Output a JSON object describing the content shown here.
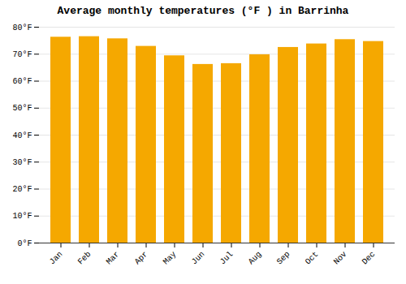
{
  "chart_data": {
    "type": "bar",
    "title": "Average monthly temperatures (°F ) in Barrinha",
    "categories": [
      "Jan",
      "Feb",
      "Mar",
      "Apr",
      "May",
      "Jun",
      "Jul",
      "Aug",
      "Sep",
      "Oct",
      "Nov",
      "Dec"
    ],
    "values": [
      76.3,
      76.5,
      75.7,
      72.9,
      69.4,
      66.2,
      66.5,
      69.8,
      72.5,
      73.8,
      75.4,
      74.7
    ],
    "color": "#F5A800",
    "ylim": [
      0,
      80
    ],
    "yticks": [
      {
        "value": 0,
        "label": "0°F"
      },
      {
        "value": 10,
        "label": "10°F"
      },
      {
        "value": 20,
        "label": "20°F"
      },
      {
        "value": 30,
        "label": "30°F"
      },
      {
        "value": 40,
        "label": "40°F"
      },
      {
        "value": 50,
        "label": "50°F"
      },
      {
        "value": 60,
        "label": "60°F"
      },
      {
        "value": 70,
        "label": "70°F"
      },
      {
        "value": 80,
        "label": "80°F"
      }
    ],
    "grid": true
  }
}
